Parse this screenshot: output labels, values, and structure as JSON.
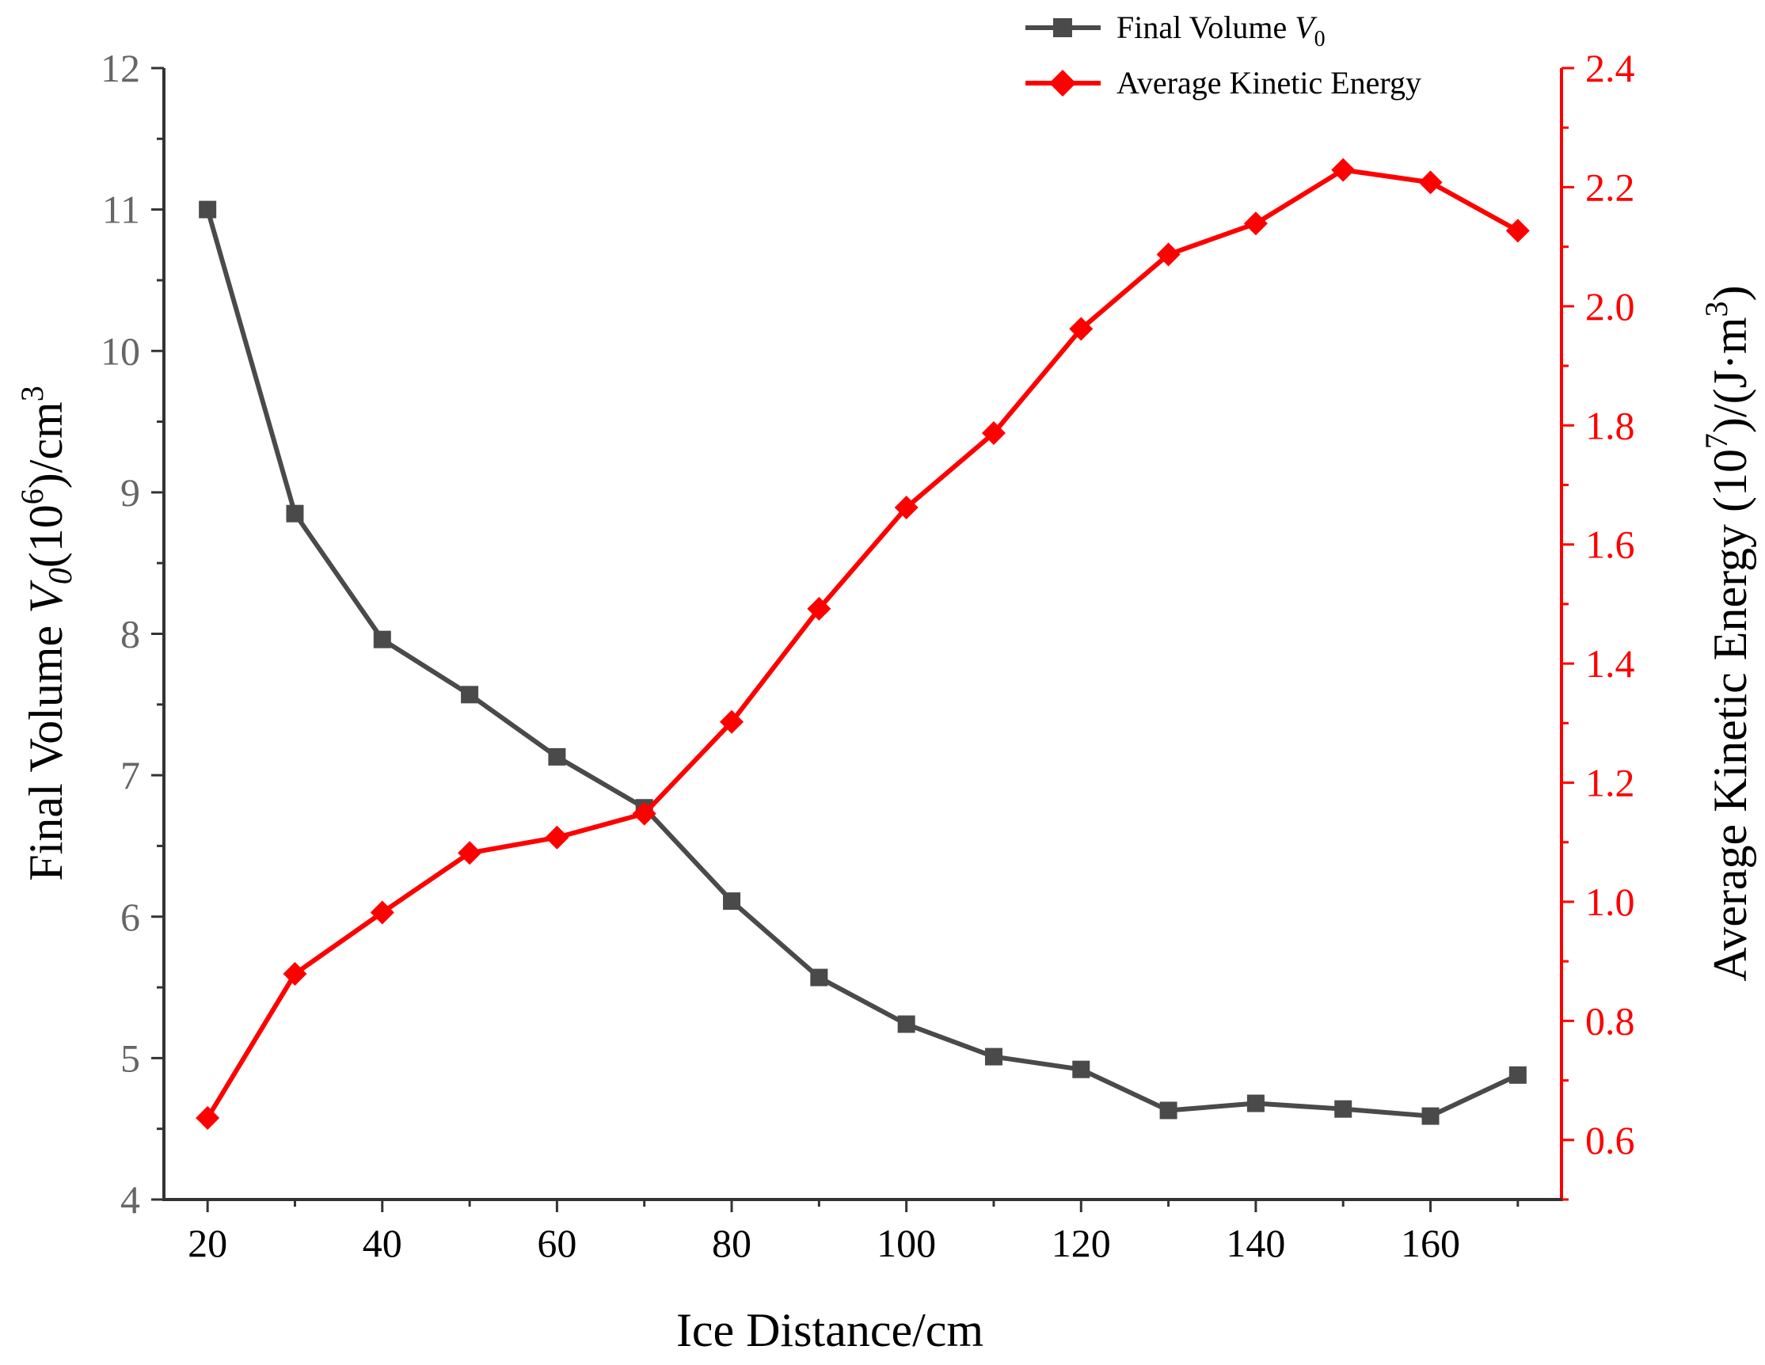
{
  "colors": {
    "volume": "#4a4a4a",
    "energy": "#ff0000",
    "left_axis": "#333333",
    "left_ticks": "#666666",
    "text": "#000000"
  },
  "chart_data": {
    "type": "line",
    "title": "",
    "x": [
      20,
      30,
      40,
      50,
      60,
      70,
      80,
      90,
      100,
      110,
      120,
      130,
      140,
      150,
      160,
      170
    ],
    "xlabel": "Ice Distance/cm",
    "xlim": [
      15,
      175
    ],
    "xticks": [
      "20",
      "40",
      "60",
      "80",
      "100",
      "120",
      "140",
      "160"
    ],
    "ylabel_left": {
      "pre": "Final Volume ",
      "var": "V",
      "sub": "0",
      "mid": "(10",
      "sup": "6",
      "post": ")/cm",
      "sup2": "3"
    },
    "ylim_left": [
      4,
      12
    ],
    "yticks_left": [
      "4",
      "5",
      "6",
      "7",
      "8",
      "9",
      "10",
      "11",
      "12"
    ],
    "ylabel_right": {
      "pre": "Average Kinetic Energy (10",
      "sup": "7",
      "mid": ")/(J·m",
      "sup2": "3",
      "post": ")"
    },
    "ylim_right": [
      0.5,
      2.4
    ],
    "yticks_right": [
      "0.6",
      "0.8",
      "1.0",
      "1.2",
      "1.4",
      "1.6",
      "1.8",
      "2.0",
      "2.2",
      "2.4"
    ],
    "series": [
      {
        "name": "Final Volume",
        "legend_var": "V",
        "legend_sub": "0",
        "axis": "left",
        "marker": "square",
        "values": [
          11.0,
          8.85,
          7.96,
          7.57,
          7.13,
          6.77,
          6.11,
          5.57,
          5.24,
          5.01,
          4.92,
          4.63,
          4.68,
          4.64,
          4.59,
          4.88
        ]
      },
      {
        "name": "Average Kinetic Energy",
        "axis": "right",
        "marker": "diamond",
        "values": [
          0.637,
          0.879,
          0.982,
          1.082,
          1.108,
          1.148,
          1.302,
          1.492,
          1.662,
          1.787,
          1.962,
          2.087,
          2.139,
          2.229,
          2.208,
          2.127
        ]
      }
    ],
    "legend_position": "top-center"
  }
}
